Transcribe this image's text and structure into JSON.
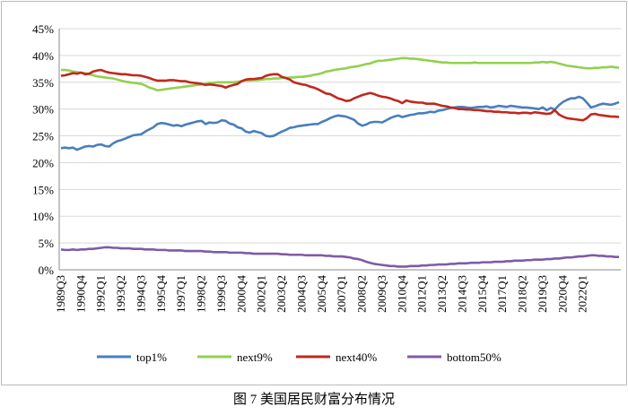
{
  "chart_data": {
    "type": "line",
    "caption": "图 7 美国居民财富分布情况",
    "categories": [
      "1989Q3",
      null,
      null,
      null,
      null,
      "1990Q4",
      null,
      null,
      null,
      null,
      "1992Q1",
      null,
      null,
      null,
      null,
      "1993Q2",
      null,
      null,
      null,
      null,
      "1994Q3",
      null,
      null,
      null,
      null,
      "1995Q4",
      null,
      null,
      null,
      null,
      "1997Q1",
      null,
      null,
      null,
      null,
      "1998Q2",
      null,
      null,
      null,
      null,
      "1999Q3",
      null,
      null,
      null,
      null,
      "2000Q4",
      null,
      null,
      null,
      null,
      "2002Q1",
      null,
      null,
      null,
      null,
      "2003Q2",
      null,
      null,
      null,
      null,
      "2004Q3",
      null,
      null,
      null,
      null,
      "2005Q4",
      null,
      null,
      null,
      null,
      "2007Q1",
      null,
      null,
      null,
      null,
      "2008Q2",
      null,
      null,
      null,
      null,
      "2009Q3",
      null,
      null,
      null,
      null,
      "2010Q4",
      null,
      null,
      null,
      null,
      "2012Q1",
      null,
      null,
      null,
      null,
      "2013Q2",
      null,
      null,
      null,
      null,
      "2014Q3",
      null,
      null,
      null,
      null,
      "2015Q4",
      null,
      null,
      null,
      null,
      "2017Q1",
      null,
      null,
      null,
      null,
      "2018Q2",
      null,
      null,
      null,
      null,
      "2019Q3",
      null,
      null,
      null,
      null,
      "2020Q4",
      null,
      null,
      null,
      null,
      "2022Q1",
      null,
      null,
      null,
      null,
      null,
      null,
      null,
      null,
      null
    ],
    "series": [
      {
        "name": "top1%",
        "color": "#4a7ebb",
        "values": [
          22.7,
          22.8,
          22.7,
          22.8,
          22.4,
          22.7,
          23.0,
          23.1,
          23.0,
          23.3,
          23.4,
          23.1,
          23.0,
          23.6,
          24.0,
          24.2,
          24.5,
          24.8,
          25.1,
          25.2,
          25.3,
          25.8,
          26.2,
          26.6,
          27.2,
          27.4,
          27.3,
          27.1,
          26.9,
          27.0,
          26.8,
          27.1,
          27.3,
          27.5,
          27.7,
          27.8,
          27.2,
          27.5,
          27.4,
          27.5,
          27.9,
          27.8,
          27.3,
          27.1,
          26.6,
          26.4,
          25.8,
          25.6,
          25.9,
          25.7,
          25.5,
          25.0,
          24.9,
          25.0,
          25.4,
          25.8,
          26.1,
          26.5,
          26.6,
          26.8,
          26.9,
          27.0,
          27.1,
          27.2,
          27.2,
          27.6,
          27.9,
          28.3,
          28.6,
          28.8,
          28.7,
          28.6,
          28.3,
          28.0,
          27.3,
          26.9,
          27.1,
          27.5,
          27.6,
          27.6,
          27.5,
          27.9,
          28.3,
          28.6,
          28.8,
          28.5,
          28.7,
          28.9,
          29.0,
          29.2,
          29.2,
          29.3,
          29.5,
          29.4,
          29.7,
          29.8,
          30.0,
          30.2,
          30.3,
          30.4,
          30.4,
          30.3,
          30.2,
          30.3,
          30.4,
          30.4,
          30.5,
          30.3,
          30.4,
          30.6,
          30.5,
          30.4,
          30.6,
          30.5,
          30.4,
          30.3,
          30.3,
          30.2,
          30.1,
          30.0,
          30.3,
          29.8,
          30.2,
          29.9,
          30.7,
          31.3,
          31.7,
          32.0,
          32.0,
          32.3,
          32.0,
          31.2,
          30.3,
          30.5,
          30.8,
          31.0,
          30.9,
          30.8,
          31.0,
          31.3
        ]
      },
      {
        "name": "next9%",
        "color": "#92d050",
        "values": [
          37.3,
          37.3,
          37.2,
          37.0,
          36.9,
          36.8,
          36.7,
          36.5,
          36.3,
          36.1,
          36.0,
          35.9,
          35.8,
          35.7,
          35.5,
          35.3,
          35.1,
          35.0,
          34.9,
          34.8,
          34.7,
          34.4,
          34.0,
          33.8,
          33.5,
          33.6,
          33.7,
          33.8,
          33.9,
          34.0,
          34.1,
          34.2,
          34.3,
          34.4,
          34.5,
          34.6,
          34.7,
          34.9,
          34.9,
          35.0,
          35.0,
          35.0,
          35.0,
          35.0,
          35.1,
          35.2,
          35.3,
          35.3,
          35.4,
          35.4,
          35.5,
          35.6,
          35.6,
          35.7,
          35.7,
          35.8,
          35.8,
          35.9,
          35.9,
          36.0,
          36.0,
          36.1,
          36.2,
          36.4,
          36.5,
          36.7,
          37.0,
          37.1,
          37.3,
          37.4,
          37.5,
          37.6,
          37.8,
          37.9,
          38.0,
          38.2,
          38.4,
          38.5,
          38.8,
          39.0,
          39.0,
          39.1,
          39.2,
          39.3,
          39.4,
          39.5,
          39.5,
          39.4,
          39.4,
          39.3,
          39.2,
          39.1,
          39.0,
          38.9,
          38.8,
          38.7,
          38.7,
          38.6,
          38.6,
          38.6,
          38.6,
          38.6,
          38.6,
          38.7,
          38.6,
          38.6,
          38.6,
          38.6,
          38.6,
          38.6,
          38.6,
          38.6,
          38.6,
          38.6,
          38.6,
          38.6,
          38.6,
          38.6,
          38.7,
          38.7,
          38.8,
          38.7,
          38.8,
          38.7,
          38.5,
          38.3,
          38.1,
          38.0,
          37.9,
          37.8,
          37.7,
          37.6,
          37.6,
          37.7,
          37.7,
          37.8,
          37.8,
          37.9,
          37.8,
          37.7
        ]
      },
      {
        "name": "next40%",
        "color": "#c0281e",
        "values": [
          36.2,
          36.3,
          36.5,
          36.7,
          36.6,
          36.8,
          36.5,
          36.6,
          37.0,
          37.2,
          37.3,
          37.0,
          36.8,
          36.7,
          36.6,
          36.5,
          36.5,
          36.4,
          36.3,
          36.3,
          36.2,
          36.0,
          35.8,
          35.5,
          35.3,
          35.3,
          35.3,
          35.4,
          35.4,
          35.3,
          35.2,
          35.2,
          35.0,
          34.9,
          34.8,
          34.7,
          34.5,
          34.6,
          34.5,
          34.4,
          34.3,
          34.0,
          34.3,
          34.5,
          34.7,
          35.2,
          35.5,
          35.6,
          35.6,
          35.7,
          35.8,
          36.2,
          36.4,
          36.5,
          36.5,
          36.0,
          35.8,
          35.5,
          35.0,
          34.8,
          34.6,
          34.5,
          34.2,
          34.0,
          33.7,
          33.3,
          32.9,
          32.8,
          32.4,
          32.0,
          31.8,
          31.5,
          31.6,
          32.0,
          32.3,
          32.6,
          32.8,
          33.0,
          32.8,
          32.5,
          32.3,
          32.2,
          32.0,
          31.7,
          31.5,
          31.1,
          31.6,
          31.4,
          31.3,
          31.2,
          31.2,
          31.0,
          31.0,
          31.0,
          30.8,
          30.6,
          30.5,
          30.3,
          30.2,
          30.0,
          30.0,
          29.9,
          29.9,
          29.8,
          29.8,
          29.7,
          29.6,
          29.6,
          29.5,
          29.5,
          29.4,
          29.4,
          29.3,
          29.3,
          29.2,
          29.3,
          29.3,
          29.2,
          29.4,
          29.3,
          29.2,
          29.1,
          29.2,
          29.8,
          29.0,
          28.6,
          28.3,
          28.2,
          28.1,
          28.0,
          27.9,
          28.3,
          29.0,
          29.1,
          28.9,
          28.8,
          28.7,
          28.6,
          28.6,
          28.5
        ]
      },
      {
        "name": "bottom50%",
        "color": "#7e5ba8",
        "values": [
          3.8,
          3.7,
          3.7,
          3.8,
          3.7,
          3.8,
          3.8,
          3.9,
          3.9,
          4.0,
          4.1,
          4.2,
          4.2,
          4.1,
          4.1,
          4.0,
          4.0,
          4.0,
          3.9,
          3.9,
          3.9,
          3.8,
          3.8,
          3.8,
          3.7,
          3.7,
          3.7,
          3.6,
          3.6,
          3.6,
          3.6,
          3.5,
          3.5,
          3.5,
          3.5,
          3.5,
          3.4,
          3.4,
          3.3,
          3.3,
          3.3,
          3.3,
          3.2,
          3.2,
          3.2,
          3.2,
          3.1,
          3.1,
          3.0,
          3.0,
          3.0,
          3.0,
          3.0,
          3.0,
          3.0,
          2.9,
          2.9,
          2.8,
          2.8,
          2.8,
          2.8,
          2.7,
          2.7,
          2.7,
          2.7,
          2.7,
          2.6,
          2.6,
          2.5,
          2.5,
          2.5,
          2.4,
          2.3,
          2.1,
          2.0,
          1.8,
          1.5,
          1.3,
          1.1,
          1.0,
          0.9,
          0.8,
          0.7,
          0.7,
          0.6,
          0.6,
          0.6,
          0.7,
          0.7,
          0.7,
          0.8,
          0.8,
          0.9,
          0.9,
          1.0,
          1.0,
          1.0,
          1.1,
          1.1,
          1.2,
          1.2,
          1.2,
          1.3,
          1.3,
          1.3,
          1.4,
          1.4,
          1.4,
          1.5,
          1.5,
          1.5,
          1.6,
          1.6,
          1.7,
          1.7,
          1.7,
          1.8,
          1.8,
          1.9,
          1.9,
          1.9,
          2.0,
          2.0,
          2.1,
          2.1,
          2.2,
          2.3,
          2.3,
          2.4,
          2.5,
          2.5,
          2.6,
          2.7,
          2.7,
          2.6,
          2.6,
          2.5,
          2.5,
          2.4,
          2.4
        ]
      }
    ],
    "ylim": [
      0,
      45
    ],
    "yticks": [
      {
        "value": 0,
        "label": "0%"
      },
      {
        "value": 5,
        "label": "5%"
      },
      {
        "value": 10,
        "label": "10%"
      },
      {
        "value": 15,
        "label": "15%"
      },
      {
        "value": 20,
        "label": "20%"
      },
      {
        "value": 25,
        "label": "25%"
      },
      {
        "value": 30,
        "label": "30%"
      },
      {
        "value": 35,
        "label": "35%"
      },
      {
        "value": 40,
        "label": "40%"
      },
      {
        "value": 45,
        "label": "45%"
      }
    ],
    "grid": true,
    "legend": "bottom"
  }
}
